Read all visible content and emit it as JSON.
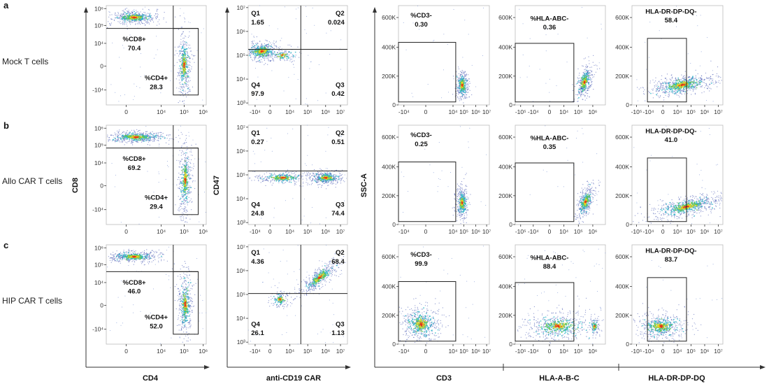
{
  "rows": [
    {
      "letter": "a",
      "label": "Mock T cells"
    },
    {
      "letter": "b",
      "label": "Allo CAR T cells"
    },
    {
      "letter": "c",
      "label": "HIP CAR T cells"
    }
  ],
  "axes": {
    "col1": {
      "xlabel": "CD4",
      "ylabel": "CD8"
    },
    "col2": {
      "xlabel": "anti-CD19 CAR",
      "ylabel": "CD47"
    },
    "col3": {
      "xlabel": "CD3",
      "ylabel": "SSC-A"
    },
    "col4": {
      "xlabel": "HLA-A-B-C"
    },
    "col5": {
      "xlabel": "HLA-DR-DP-DQ"
    }
  },
  "colors": {
    "gate": "#222222",
    "density_low": "#2b3fa8",
    "density_mid": "#29b6c8",
    "density_high": "#f0d21e",
    "density_peak": "#e4321e"
  },
  "chart_data": [
    {
      "type": "scatter",
      "columns": [
        {
          "xticks": [
            "0",
            "10⁴",
            "10⁵",
            "10⁶"
          ],
          "yticks": [
            "10⁶",
            "10⁵",
            "10⁴",
            "0",
            "-10⁴"
          ]
        },
        {
          "xticks": [
            "-10⁴",
            "0",
            "10⁴",
            "10⁵",
            "10⁶",
            "10⁷"
          ],
          "yticks": [
            "10⁷",
            "10⁶",
            "10⁵",
            "10⁴",
            "10³"
          ]
        },
        {
          "xticks": [
            "-10⁴",
            "0",
            "10⁴",
            "10⁵",
            "10⁶",
            "10⁷"
          ],
          "yticks": [
            "600K",
            "400K",
            "200K",
            "0"
          ]
        },
        {
          "xticks": [
            "-10⁵",
            "-10⁴",
            "0",
            "10⁴",
            "10⁵",
            "10⁶"
          ],
          "yticks": [
            "600K",
            "400K",
            "200K",
            "0"
          ]
        },
        {
          "xticks": [
            "-10⁵",
            "-10⁴",
            "0",
            "10⁴",
            "10⁵",
            "10⁶",
            "10⁷"
          ],
          "yticks": [
            "600K",
            "400K",
            "200K",
            "0"
          ]
        }
      ]
    },
    {
      "row": "a",
      "panels": [
        {
          "gates": [
            {
              "name": "%CD8+",
              "value": "70.4"
            },
            {
              "name": "%CD4+",
              "value": "28.3"
            }
          ]
        },
        {
          "gates": [
            {
              "name": "Q1",
              "value": "1.65"
            },
            {
              "name": "Q2",
              "value": "0.024"
            },
            {
              "name": "Q3",
              "value": "0.42"
            },
            {
              "name": "Q4",
              "value": "97.9"
            }
          ]
        },
        {
          "gates": [
            {
              "name": "%CD3-",
              "value": "0.30"
            }
          ]
        },
        {
          "gates": [
            {
              "name": "%HLA-ABC-",
              "value": "0.36"
            }
          ]
        },
        {
          "gates": [
            {
              "name": "HLA-DR-DP-DQ-",
              "value": "58.4"
            }
          ]
        }
      ]
    },
    {
      "row": "b",
      "panels": [
        {
          "gates": [
            {
              "name": "%CD8+",
              "value": "69.2"
            },
            {
              "name": "%CD4+",
              "value": "29.4"
            }
          ]
        },
        {
          "gates": [
            {
              "name": "Q1",
              "value": "0.27"
            },
            {
              "name": "Q2",
              "value": "0.51"
            },
            {
              "name": "Q3",
              "value": "74.4"
            },
            {
              "name": "Q4",
              "value": "24.8"
            }
          ]
        },
        {
          "gates": [
            {
              "name": "%CD3-",
              "value": "0.25"
            }
          ]
        },
        {
          "gates": [
            {
              "name": "%HLA-ABC-",
              "value": "0.35"
            }
          ]
        },
        {
          "gates": [
            {
              "name": "HLA-DR-DP-DQ-",
              "value": "41.0"
            }
          ]
        }
      ]
    },
    {
      "row": "c",
      "panels": [
        {
          "gates": [
            {
              "name": "%CD8+",
              "value": "46.0"
            },
            {
              "name": "%CD4+",
              "value": "52.0"
            }
          ]
        },
        {
          "gates": [
            {
              "name": "Q1",
              "value": "4.36"
            },
            {
              "name": "Q2",
              "value": "68.4"
            },
            {
              "name": "Q3",
              "value": "1.13"
            },
            {
              "name": "Q4",
              "value": "26.1"
            }
          ]
        },
        {
          "gates": [
            {
              "name": "%CD3-",
              "value": "99.9"
            }
          ]
        },
        {
          "gates": [
            {
              "name": "%HLA-ABC-",
              "value": "88.4"
            }
          ]
        },
        {
          "gates": [
            {
              "name": "HLA-DR-DP-DQ-",
              "value": "83.7"
            }
          ]
        }
      ]
    }
  ]
}
